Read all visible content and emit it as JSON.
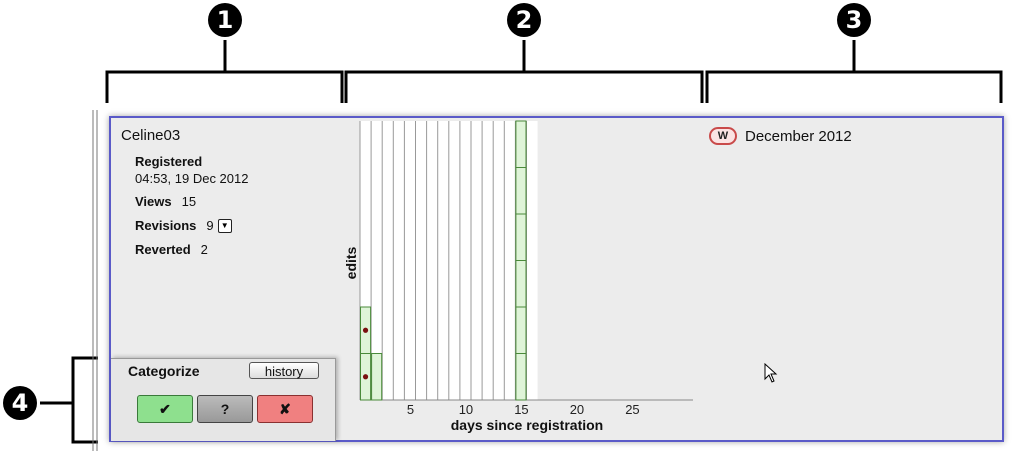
{
  "callouts": [
    "1",
    "2",
    "3",
    "4"
  ],
  "user": {
    "name": "Celine03",
    "registered_label": "Registered",
    "registered_value": "04:53, 19 Dec 2012",
    "views_label": "Views",
    "views_value": "15",
    "revisions_label": "Revisions",
    "revisions_value": "9",
    "reverted_label": "Reverted",
    "reverted_value": "2"
  },
  "month": {
    "badge": "W",
    "label": "December 2012"
  },
  "categorize": {
    "title": "Categorize",
    "history_label": "history",
    "good_label": "✔",
    "unsure_label": "?",
    "bad_label": "✘"
  },
  "chart_data": {
    "type": "bar",
    "xlabel": "days since registration",
    "ylabel": "edits",
    "xticks": [
      5,
      10,
      15,
      20,
      25
    ],
    "days_total": 30,
    "edits_by_day": [
      {
        "day": 0,
        "edits": 2,
        "reverted": 2
      },
      {
        "day": 1,
        "edits": 1,
        "reverted": 0
      },
      {
        "day": 14,
        "edits": 6,
        "reverted": 0
      }
    ],
    "ymax": 6
  },
  "colors": {
    "panel_border": "#5a5ac8",
    "bar_fill": "#dff4d8",
    "bar_border": "#4a8a3a",
    "revert_dot": "#7a1010",
    "good_button": "#8ee08e",
    "bad_button": "#f08080"
  }
}
